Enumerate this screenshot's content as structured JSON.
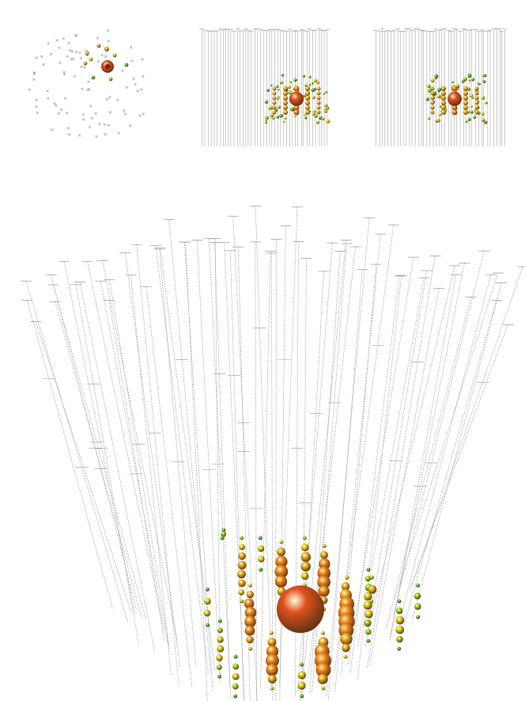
{
  "figure": {
    "panels": [
      {
        "view": "top",
        "label": ""
      },
      {
        "view": "side-x",
        "label": ""
      },
      {
        "view": "side-y",
        "label": ""
      },
      {
        "view": "perspective",
        "label": ""
      }
    ]
  },
  "palette": {
    "string_line": "#9a9a9a",
    "dom_mark": "#8a8a8a",
    "hit_red": "#e0501e",
    "hit_orange": "#f08a1c",
    "hit_amber": "#e8b020",
    "hit_yellow": "#d8d820",
    "hit_lime": "#9cd21e",
    "hit_green": "#3cbc3c",
    "background": "#ffffff"
  }
}
